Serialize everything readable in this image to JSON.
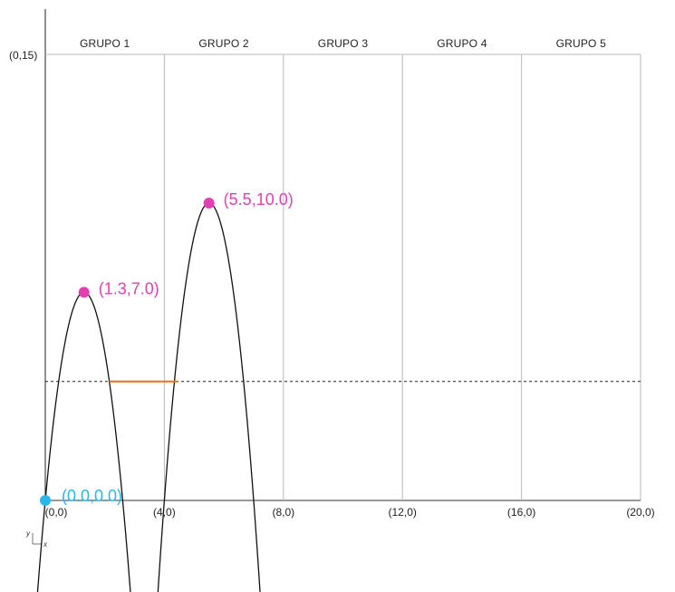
{
  "chart_data": {
    "type": "diagram",
    "x_range": [
      0,
      20
    ],
    "y_range": [
      0,
      15
    ],
    "group_width": 4,
    "origin_point": {
      "x": 0.0,
      "y": 0.0,
      "label": "(0.0,0.0)"
    },
    "top_left_label": "(0,15)",
    "groups": [
      {
        "label": "GRUPO 1"
      },
      {
        "label": "GRUPO 2"
      },
      {
        "label": "GRUPO 3"
      },
      {
        "label": "GRUPO 4"
      },
      {
        "label": "GRUPO 5"
      }
    ],
    "x_tick_labels": [
      {
        "x": 0,
        "label": "(0,0)"
      },
      {
        "x": 4,
        "label": "(4,0)"
      },
      {
        "x": 8,
        "label": "(8,0)"
      },
      {
        "x": 12,
        "label": "(12,0)"
      },
      {
        "x": 16,
        "label": "(16,0)"
      },
      {
        "x": 20,
        "label": "(20,0)"
      }
    ],
    "parabolas": [
      {
        "vertex": [
          1.3,
          7.0
        ],
        "x_intercepts": [
          0.0,
          2.6
        ],
        "label": "(1.3,7.0)"
      },
      {
        "vertex": [
          5.5,
          10.0
        ],
        "x_intercepts": [
          4.0,
          7.0
        ],
        "label": "(5.5,10.0)"
      }
    ],
    "threshold_y": 4,
    "highlight_segment": {
      "y": 4,
      "x_start": 2.15,
      "x_end": 4.45
    },
    "mini_axes": {
      "x_label": "x",
      "y_label": "y"
    },
    "colors": {
      "vertex": "#e040b0",
      "origin": "#29b6e8",
      "highlight": "#e87722",
      "grid": "#b8b8b8",
      "curve": "#111111"
    }
  }
}
